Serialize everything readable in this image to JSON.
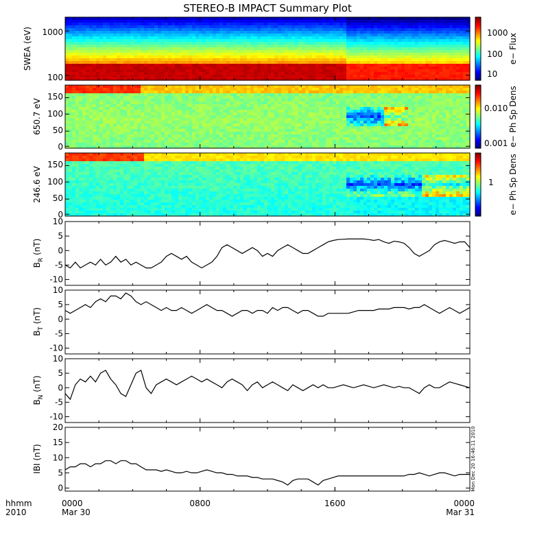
{
  "chart_data": {
    "title": "STEREO-B IMPACT Summary Plot",
    "stamp": "Mon Dec 20 16:46:11 2010",
    "x_axis": {
      "row1_label": "hhmm",
      "row2_label": "2010",
      "ticks": [
        {
          "hour": 0,
          "label": "0000",
          "sublabel": "Mar 30"
        },
        {
          "hour": 8,
          "label": "0800",
          "sublabel": ""
        },
        {
          "hour": 16,
          "label": "1600",
          "sublabel": ""
        },
        {
          "hour": 24,
          "label": "0000",
          "sublabel": "Mar 31"
        }
      ],
      "range_hours": [
        0,
        24
      ]
    },
    "spectrograms": [
      {
        "type": "heatmap",
        "ylabel": "SWEA (eV)",
        "yscale": "log",
        "ylim": [
          100,
          2000
        ],
        "ytick_labels": [
          "1000",
          "100"
        ],
        "colorbar_label": "e− Flux",
        "colorbar_ticks": [
          "1000",
          "100",
          "10"
        ],
        "cbar_scale": "log",
        "cbar_range": [
          5,
          6000
        ]
      },
      {
        "type": "heatmap",
        "ylabel": "650.7 eV",
        "ylim": [
          0,
          180
        ],
        "ytick_labels": [
          "150",
          "100",
          "50",
          "0"
        ],
        "colorbar_label": "e− Ph Sp Dens",
        "colorbar_ticks": [
          "0.010",
          "0.001"
        ],
        "cbar_scale": "log",
        "cbar_range": [
          0.0008,
          0.05
        ]
      },
      {
        "type": "heatmap",
        "ylabel": "246.6 eV",
        "ylim": [
          0,
          180
        ],
        "ytick_labels": [
          "150",
          "100",
          "50",
          "0"
        ],
        "colorbar_label": "e− Ph Sp Dens",
        "colorbar_ticks": [
          "1"
        ],
        "cbar_scale": "log",
        "cbar_range": [
          0.1,
          5
        ]
      }
    ],
    "line_panels": [
      {
        "type": "line",
        "ylabel_main": "B",
        "ylabel_sub": "R",
        "ylabel_unit": " (nT)",
        "ylim": [
          -12,
          10
        ],
        "yticks": [
          10,
          5,
          0,
          -5,
          -10
        ],
        "x_hours": [
          0,
          0.3,
          0.6,
          0.9,
          1.2,
          1.5,
          1.8,
          2.1,
          2.4,
          2.7,
          3,
          3.3,
          3.6,
          3.9,
          4.2,
          4.5,
          4.8,
          5.1,
          5.4,
          5.7,
          6,
          6.3,
          6.6,
          6.9,
          7.2,
          7.5,
          7.8,
          8.1,
          8.4,
          8.7,
          9,
          9.3,
          9.6,
          9.9,
          10.2,
          10.5,
          10.8,
          11.1,
          11.4,
          11.7,
          12,
          12.3,
          12.6,
          12.9,
          13.2,
          13.5,
          13.8,
          14.1,
          14.4,
          14.7,
          15,
          15.3,
          15.6,
          15.9,
          16.2,
          16.5,
          16.8,
          17.1,
          17.4,
          17.7,
          18,
          18.3,
          18.6,
          18.9,
          19.2,
          19.5,
          19.8,
          20.1,
          20.4,
          20.7,
          21,
          21.3,
          21.6,
          21.9,
          22.2,
          22.5,
          22.8,
          23.1,
          23.4,
          23.7,
          24
        ],
        "y_values": [
          -5,
          -6,
          -4,
          -6,
          -5,
          -4,
          -5,
          -3,
          -5,
          -4,
          -2,
          -4,
          -3,
          -5,
          -4,
          -5,
          -6,
          -6,
          -5,
          -4,
          -2,
          -1,
          -2,
          -3,
          -2,
          -4,
          -5,
          -6,
          -5,
          -4,
          -2,
          1,
          2,
          1,
          0,
          -1,
          0,
          1,
          0,
          -2,
          -1,
          -2,
          0,
          1,
          2,
          1,
          0,
          -1,
          -1,
          0,
          1,
          2,
          3,
          3.5,
          3.8,
          3.9,
          4,
          4,
          4,
          4,
          3.8,
          3.5,
          3.8,
          3,
          2.5,
          3.2,
          3,
          2.5,
          1,
          -1,
          -2,
          -1,
          0,
          2,
          3,
          3.5,
          3,
          2.5,
          3,
          3,
          1
        ],
        "ylabel_range": [
          -10,
          10
        ]
      },
      {
        "type": "line",
        "ylabel_main": "B",
        "ylabel_sub": "T",
        "ylabel_unit": " (nT)",
        "ylim": [
          -12,
          10
        ],
        "yticks": [
          10,
          5,
          0,
          -5,
          -10
        ],
        "x_hours": [
          0,
          0.3,
          0.6,
          0.9,
          1.2,
          1.5,
          1.8,
          2.1,
          2.4,
          2.7,
          3,
          3.3,
          3.6,
          3.9,
          4.2,
          4.5,
          4.8,
          5.1,
          5.4,
          5.7,
          6,
          6.3,
          6.6,
          6.9,
          7.2,
          7.5,
          7.8,
          8.1,
          8.4,
          8.7,
          9,
          9.3,
          9.6,
          9.9,
          10.2,
          10.5,
          10.8,
          11.1,
          11.4,
          11.7,
          12,
          12.3,
          12.6,
          12.9,
          13.2,
          13.5,
          13.8,
          14.1,
          14.4,
          14.7,
          15,
          15.3,
          15.6,
          15.9,
          16.2,
          16.5,
          16.8,
          17.1,
          17.4,
          17.7,
          18,
          18.3,
          18.6,
          18.9,
          19.2,
          19.5,
          19.8,
          20.1,
          20.4,
          20.7,
          21,
          21.3,
          21.6,
          21.9,
          22.2,
          22.5,
          22.8,
          23.1,
          23.4,
          23.7,
          24
        ],
        "y_values": [
          3,
          2,
          3,
          4,
          5,
          4,
          6,
          7,
          6,
          8,
          8,
          7,
          9,
          8,
          6,
          5,
          6,
          5,
          4,
          3,
          4,
          3,
          3,
          4,
          3,
          2,
          3,
          4,
          5,
          4,
          3,
          3,
          2,
          1,
          2,
          3,
          3,
          2,
          3,
          3,
          2,
          4,
          3,
          4,
          4,
          3,
          2,
          3,
          3,
          2,
          1,
          1,
          2,
          2,
          2,
          2,
          2,
          2.5,
          3,
          3,
          3,
          3,
          3.5,
          3.5,
          3.5,
          4,
          4,
          4,
          3.5,
          4,
          4,
          5,
          4,
          3,
          2,
          3,
          4,
          3,
          2,
          3,
          4
        ],
        "ylabel_range": [
          -10,
          10
        ]
      },
      {
        "type": "line",
        "ylabel_main": "B",
        "ylabel_sub": "N",
        "ylabel_unit": " (nT)",
        "ylim": [
          -12,
          10
        ],
        "yticks": [
          10,
          5,
          0,
          -5,
          -10
        ],
        "x_hours": [
          0,
          0.3,
          0.6,
          0.9,
          1.2,
          1.5,
          1.8,
          2.1,
          2.4,
          2.7,
          3,
          3.3,
          3.6,
          3.9,
          4.2,
          4.5,
          4.8,
          5.1,
          5.4,
          5.7,
          6,
          6.3,
          6.6,
          6.9,
          7.2,
          7.5,
          7.8,
          8.1,
          8.4,
          8.7,
          9,
          9.3,
          9.6,
          9.9,
          10.2,
          10.5,
          10.8,
          11.1,
          11.4,
          11.7,
          12,
          12.3,
          12.6,
          12.9,
          13.2,
          13.5,
          13.8,
          14.1,
          14.4,
          14.7,
          15,
          15.3,
          15.6,
          15.9,
          16.2,
          16.5,
          16.8,
          17.1,
          17.4,
          17.7,
          18,
          18.3,
          18.6,
          18.9,
          19.2,
          19.5,
          19.8,
          20.1,
          20.4,
          20.7,
          21,
          21.3,
          21.6,
          21.9,
          22.2,
          22.5,
          22.8,
          23.1,
          23.4,
          23.7,
          24
        ],
        "y_values": [
          -2,
          -4,
          1,
          3,
          2,
          4,
          2,
          5,
          6,
          3,
          1,
          -2,
          -3,
          1,
          5,
          6,
          0,
          -2,
          1,
          2,
          3,
          2,
          1,
          2,
          3,
          4,
          3,
          2,
          3,
          2,
          1,
          0,
          2,
          3,
          2,
          1,
          -1,
          1,
          2,
          0,
          1,
          2,
          1,
          0,
          -1,
          1,
          0,
          -1,
          0,
          1,
          0,
          1,
          0,
          0,
          0.5,
          1,
          0.5,
          0,
          0.5,
          1,
          0.5,
          0,
          0.5,
          1,
          0.5,
          0,
          0.5,
          0,
          0,
          -1,
          -2,
          0,
          1,
          0,
          0,
          1,
          2,
          1.5,
          1,
          0.5,
          0
        ],
        "ylabel_range": [
          -10,
          10
        ]
      },
      {
        "type": "line",
        "ylabel_main": "IBI",
        "ylabel_sub": "",
        "ylabel_unit": " (nT)",
        "ylim": [
          -1,
          20
        ],
        "yticks": [
          20,
          15,
          10,
          5,
          0
        ],
        "x_hours": [
          0,
          0.3,
          0.6,
          0.9,
          1.2,
          1.5,
          1.8,
          2.1,
          2.4,
          2.7,
          3,
          3.3,
          3.6,
          3.9,
          4.2,
          4.5,
          4.8,
          5.1,
          5.4,
          5.7,
          6,
          6.3,
          6.6,
          6.9,
          7.2,
          7.5,
          7.8,
          8.1,
          8.4,
          8.7,
          9,
          9.3,
          9.6,
          9.9,
          10.2,
          10.5,
          10.8,
          11.1,
          11.4,
          11.7,
          12,
          12.3,
          12.6,
          12.9,
          13.2,
          13.5,
          13.8,
          14.1,
          14.4,
          14.7,
          15,
          15.3,
          15.6,
          15.9,
          16.2,
          16.5,
          16.8,
          17.1,
          17.4,
          17.7,
          18,
          18.3,
          18.6,
          18.9,
          19.2,
          19.5,
          19.8,
          20.1,
          20.4,
          20.7,
          21,
          21.3,
          21.6,
          21.9,
          22.2,
          22.5,
          22.8,
          23.1,
          23.4,
          23.7,
          24
        ],
        "y_values": [
          6,
          7,
          7,
          8,
          8,
          7,
          8,
          8,
          9,
          9,
          8,
          9,
          9,
          8,
          8,
          7,
          6,
          6,
          6,
          5.5,
          6,
          5.5,
          5,
          5,
          5.5,
          5,
          5,
          5.5,
          6,
          5.5,
          5,
          5,
          4.5,
          4.5,
          4,
          4,
          4,
          3.5,
          3.5,
          3,
          3,
          3,
          2.5,
          2,
          1,
          2.5,
          3,
          3,
          3,
          2,
          1,
          2.5,
          3,
          3.5,
          4,
          4,
          4,
          4,
          4,
          4,
          4,
          4,
          4,
          4,
          4,
          4,
          4,
          4,
          4.5,
          4.5,
          5,
          4.5,
          4,
          4.5,
          5,
          5,
          4.5,
          4,
          4.5,
          4.5,
          4.5
        ],
        "ylabel_range": [
          0,
          20
        ]
      }
    ]
  }
}
